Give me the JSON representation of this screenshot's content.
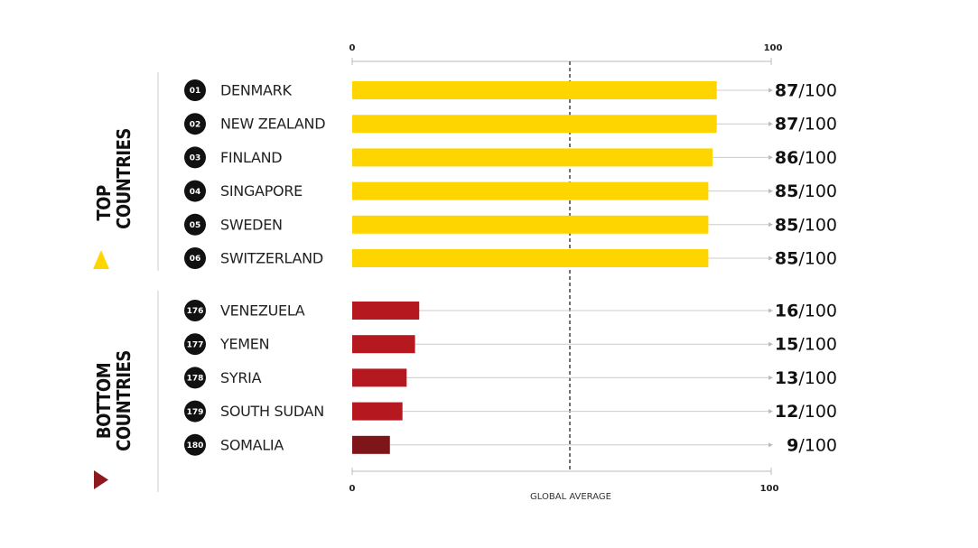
{
  "chart_data": {
    "type": "bar",
    "orientation": "horizontal",
    "xlim": [
      0,
      100
    ],
    "axis_ticks": [
      "0",
      "100"
    ],
    "reference_line_label": "GLOBAL AVERAGE",
    "score_suffix": "/100",
    "groups": [
      {
        "label_line1": "TOP",
        "label_line2": "COUNTRIES",
        "marker": "triangle-up",
        "rows": [
          {
            "rank": "01",
            "country": "DENMARK",
            "value": 87,
            "color": "#FFD500"
          },
          {
            "rank": "02",
            "country": "NEW ZEALAND",
            "value": 87,
            "color": "#FFD500"
          },
          {
            "rank": "03",
            "country": "FINLAND",
            "value": 86,
            "color": "#FFD500"
          },
          {
            "rank": "04",
            "country": "SINGAPORE",
            "value": 85,
            "color": "#FFD500"
          },
          {
            "rank": "05",
            "country": "SWEDEN",
            "value": 85,
            "color": "#FFD500"
          },
          {
            "rank": "06",
            "country": "SWITZERLAND",
            "value": 85,
            "color": "#FFD500"
          }
        ]
      },
      {
        "label_line1": "BOTTOM",
        "label_line2": "COUNTRIES",
        "marker": "triangle-right",
        "rows": [
          {
            "rank": "176",
            "country": "VENEZUELA",
            "value": 16,
            "color": "#B5181F"
          },
          {
            "rank": "177",
            "country": "YEMEN",
            "value": 15,
            "color": "#B5181F"
          },
          {
            "rank": "178",
            "country": "SYRIA",
            "value": 13,
            "color": "#B5181F"
          },
          {
            "rank": "179",
            "country": "SOUTH SUDAN",
            "value": 12,
            "color": "#B5181F"
          },
          {
            "rank": "180",
            "country": "SOMALIA",
            "value": 9,
            "color": "#7E1519"
          }
        ]
      }
    ],
    "colors": {
      "top_marker": "#FFD500",
      "bottom_marker": "#8C1A1E",
      "rank_badge": "#111111",
      "leader_line": "#cccccc",
      "axis_line": "#bbbbbb"
    }
  }
}
